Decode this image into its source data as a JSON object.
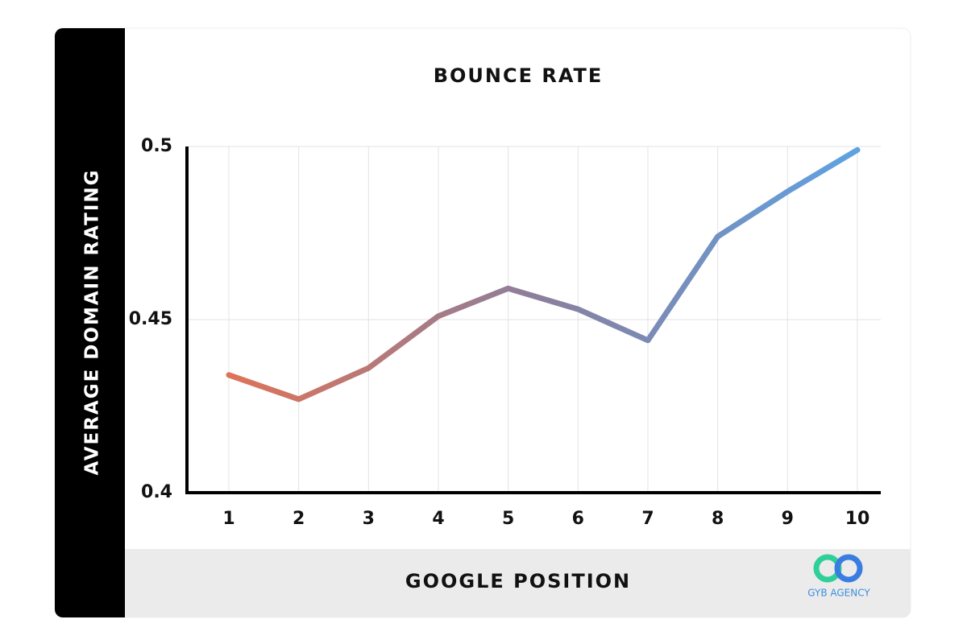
{
  "chart_data": {
    "type": "line",
    "title": "BOUNCE RATE",
    "x_label": "GOOGLE POSITION",
    "y_label": "AVERAGE DOMAIN RATING",
    "categories": [
      "1",
      "2",
      "3",
      "4",
      "5",
      "6",
      "7",
      "8",
      "9",
      "10"
    ],
    "series": [
      {
        "name": "Bounce rate",
        "colors": [
          "#de7358",
          "#8a7f9e",
          "#5ea2e2"
        ],
        "values": [
          0.434,
          0.427,
          0.436,
          0.451,
          0.459,
          0.453,
          0.444,
          0.474,
          0.487,
          0.499
        ]
      }
    ],
    "ylim": [
      0.4,
      0.5
    ],
    "yticks": [
      0.4,
      0.45,
      0.5
    ],
    "grid": true,
    "watermark": "GYB AGENCY"
  }
}
